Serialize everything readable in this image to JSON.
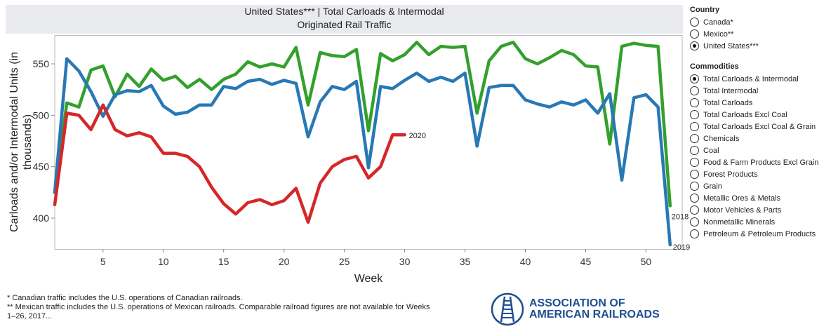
{
  "title": {
    "line1": "United States*** | Total Carloads & Intermodal",
    "line2": "Originated Rail Traffic"
  },
  "filters": {
    "country": {
      "heading": "Country",
      "options": [
        {
          "label": "Canada*",
          "selected": false
        },
        {
          "label": "Mexico**",
          "selected": false
        },
        {
          "label": "United States***",
          "selected": true
        }
      ]
    },
    "commodities": {
      "heading": "Commodities",
      "options": [
        {
          "label": "Total Carloads & Intermodal",
          "selected": true
        },
        {
          "label": "Total Intermodal",
          "selected": false
        },
        {
          "label": "Total Carloads",
          "selected": false
        },
        {
          "label": "Total Carloads Excl Coal",
          "selected": false
        },
        {
          "label": "Total Carloads Excl Coal & Grain",
          "selected": false
        },
        {
          "label": "Chemicals",
          "selected": false
        },
        {
          "label": "Coal",
          "selected": false
        },
        {
          "label": "Food & Farm Products Excl Grain",
          "selected": false
        },
        {
          "label": "Forest Products",
          "selected": false
        },
        {
          "label": "Grain",
          "selected": false
        },
        {
          "label": "Metallic Ores & Metals",
          "selected": false
        },
        {
          "label": "Motor Vehicles & Parts",
          "selected": false
        },
        {
          "label": "Nonmetallic Minerals",
          "selected": false
        },
        {
          "label": "Petroleum & Petroleum Products",
          "selected": false
        }
      ]
    }
  },
  "footnotes": {
    "line1": "* Canadian traffic includes the U.S. operations of Canadian railroads.",
    "line2": "** Mexican traffic includes the U.S. operations of Mexican railroads. Comparable railroad figures are not available for Weeks",
    "line3": "1–26, 2017..."
  },
  "logo": {
    "line1": "ASSOCIATION OF",
    "line2": "AMERICAN RAILROADS"
  },
  "colors": {
    "2018": "#33a02c",
    "2019": "#2878b5",
    "2020": "#d62728"
  },
  "chart_data": {
    "type": "line",
    "xlabel": "Week",
    "ylabel": "Carloads and/or Intermodal Units (in thousands)",
    "ylabel_lines": [
      "Carloads and/or Intermodal Units (in",
      "thousands)"
    ],
    "xlim": [
      1,
      53
    ],
    "ylim": [
      370,
      578
    ],
    "xticks": [
      5,
      10,
      15,
      20,
      25,
      30,
      35,
      40,
      45,
      50
    ],
    "yticks": [
      400,
      450,
      500,
      550
    ],
    "series": [
      {
        "name": "2018",
        "start_week": 1,
        "values": [
          425,
          512,
          508,
          544,
          548,
          518,
          540,
          528,
          545,
          534,
          538,
          527,
          535,
          525,
          535,
          540,
          552,
          547,
          550,
          547,
          566,
          510,
          561,
          558,
          557,
          564,
          485,
          560,
          553,
          559,
          571,
          559,
          567,
          566,
          567,
          502,
          553,
          567,
          571,
          555,
          550,
          556,
          563,
          559,
          548,
          547,
          472,
          567,
          570,
          568,
          567,
          412
        ]
      },
      {
        "name": "2019",
        "start_week": 1,
        "values": [
          425,
          555,
          543,
          523,
          499,
          520,
          524,
          523,
          529,
          509,
          501,
          503,
          510,
          510,
          528,
          526,
          533,
          535,
          530,
          534,
          531,
          479,
          513,
          528,
          525,
          533,
          449,
          528,
          526,
          534,
          541,
          533,
          537,
          533,
          541,
          470,
          527,
          529,
          529,
          515,
          511,
          508,
          513,
          510,
          515,
          502,
          521,
          437,
          517,
          520,
          508,
          374
        ]
      },
      {
        "name": "2020",
        "start_week": 1,
        "values": [
          413,
          502,
          500,
          486,
          510,
          486,
          480,
          483,
          479,
          463,
          463,
          460,
          450,
          430,
          414,
          404,
          415,
          418,
          413,
          417,
          429,
          396,
          434,
          450,
          457,
          460,
          439,
          450,
          481,
          481
        ]
      }
    ]
  }
}
